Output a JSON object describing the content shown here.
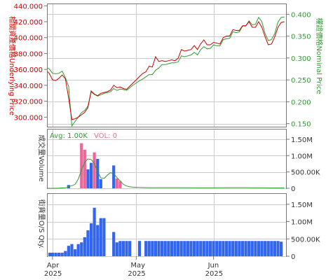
{
  "chart_data": [
    {
      "type": "line",
      "panel": "price",
      "left_axis_title": "相關資產價格Underlying Price",
      "right_axis_title": "權證價格Nominal Price",
      "left_ticks": [
        "440.000",
        "420.000",
        "400.000",
        "380.000",
        "360.000",
        "340.000",
        "320.000",
        "300.000"
      ],
      "left_tick_values": [
        440,
        420,
        400,
        380,
        360,
        340,
        320,
        300
      ],
      "right_ticks": [
        "0.400",
        "0.350",
        "0.300",
        "0.250",
        "0.200",
        "0.150"
      ],
      "right_tick_values": [
        0.4,
        0.35,
        0.3,
        0.25,
        0.2,
        0.15
      ],
      "left_ylim": [
        288,
        442
      ],
      "right_ylim": [
        0.143,
        0.423
      ],
      "x_ticks": [
        {
          "month": "Apr",
          "year": "2025",
          "x": 0
        },
        {
          "month": "May",
          "year": "2025",
          "x": 26
        },
        {
          "month": "Jun",
          "year": "2025",
          "x": 50
        }
      ],
      "xlim": [
        -1.5,
        72.5
      ],
      "series": [
        {
          "axis": "left",
          "color": "#cc0000",
          "x": [
            -2,
            -1,
            0,
            1,
            2,
            3,
            4,
            5,
            6,
            7,
            8,
            9,
            10,
            11,
            12,
            13,
            14,
            15,
            16,
            17,
            18,
            19,
            20,
            21,
            22,
            23,
            24,
            25,
            26,
            27,
            28,
            29,
            30,
            31,
            32,
            33,
            34,
            35,
            36,
            37,
            38,
            39,
            40,
            41,
            42,
            43,
            44,
            45,
            46,
            47,
            48,
            49,
            50,
            51,
            52,
            53,
            54,
            55,
            56,
            57,
            58,
            59,
            60,
            61,
            62,
            63,
            64,
            65,
            66,
            67,
            68,
            69,
            70,
            71,
            72
          ],
          "values": [
            357,
            355,
            347,
            346,
            349,
            353,
            348,
            324,
            297,
            298,
            300,
            303,
            306,
            312,
            333,
            329,
            327,
            330,
            331,
            332,
            334,
            340,
            337,
            338,
            336,
            335,
            339,
            343,
            347,
            351,
            355,
            357,
            364,
            363,
            376,
            370,
            371,
            370,
            371,
            372,
            371,
            374,
            385,
            383,
            384,
            385,
            390,
            385,
            392,
            397,
            391,
            391,
            394,
            393,
            392,
            400,
            402,
            402,
            410,
            409,
            409,
            415,
            415,
            420,
            413,
            413,
            420,
            413,
            401,
            391,
            392,
            401,
            413,
            419,
            420
          ]
        },
        {
          "axis": "right",
          "color": "#339933",
          "x": [
            -2,
            -1,
            0,
            1,
            2,
            3,
            4,
            5,
            6,
            7,
            8,
            9,
            10,
            11,
            12,
            13,
            14,
            15,
            16,
            17,
            18,
            19,
            20,
            21,
            22,
            23,
            24,
            25,
            26,
            27,
            28,
            29,
            30,
            31,
            32,
            33,
            34,
            35,
            36,
            37,
            38,
            39,
            40,
            41,
            42,
            43,
            44,
            45,
            46,
            47,
            48,
            49,
            50,
            51,
            52,
            53,
            54,
            55,
            56,
            57,
            58,
            59,
            60,
            61,
            62,
            63,
            64,
            65,
            66,
            67,
            68,
            69,
            70,
            71,
            72
          ],
          "values": [
            0.277,
            0.275,
            0.265,
            0.264,
            0.265,
            0.27,
            0.255,
            0.235,
            0.145,
            0.155,
            0.165,
            0.175,
            0.18,
            0.19,
            0.222,
            0.217,
            0.213,
            0.216,
            0.219,
            0.221,
            0.223,
            0.23,
            0.226,
            0.229,
            0.228,
            0.226,
            0.232,
            0.238,
            0.243,
            0.248,
            0.252,
            0.257,
            0.262,
            0.262,
            0.272,
            0.277,
            0.285,
            0.285,
            0.287,
            0.289,
            0.289,
            0.291,
            0.305,
            0.303,
            0.305,
            0.307,
            0.313,
            0.307,
            0.319,
            0.326,
            0.321,
            0.322,
            0.33,
            0.328,
            0.328,
            0.342,
            0.344,
            0.345,
            0.36,
            0.358,
            0.36,
            0.373,
            0.373,
            0.385,
            0.376,
            0.377,
            0.393,
            0.383,
            0.356,
            0.34,
            0.342,
            0.356,
            0.382,
            0.393,
            0.394
          ]
        }
      ]
    },
    {
      "type": "bar",
      "panel": "volume",
      "left_axis_title": "成交量Volume",
      "legend": {
        "avg_label": "Avg: 1.00K",
        "vol_label": "VOL: 0"
      },
      "right_ticks": [
        "1.50M",
        "1.00M",
        "500.00K",
        "0"
      ],
      "right_tick_values": [
        1500000,
        1000000,
        500000,
        0
      ],
      "ylim": [
        0,
        1800000
      ],
      "bars": [
        {
          "x": 5,
          "value": 100000,
          "color": "#3366ee"
        },
        {
          "x": 9,
          "value": 1380000,
          "color": "#ee6699"
        },
        {
          "x": 10,
          "value": 1180000,
          "color": "#ee6699"
        },
        {
          "x": 11,
          "value": 580000,
          "color": "#3366ee"
        },
        {
          "x": 12,
          "value": 780000,
          "color": "#3366ee"
        },
        {
          "x": 13,
          "value": 1100000,
          "color": "#ee6699"
        },
        {
          "x": 14,
          "value": 900000,
          "color": "#3366ee"
        },
        {
          "x": 15,
          "value": 280000,
          "color": "#3366ee"
        },
        {
          "x": 19,
          "value": 700000,
          "color": "#3366ee"
        },
        {
          "x": 20,
          "value": 300000,
          "color": "#ee6699"
        },
        {
          "x": 21,
          "value": 220000,
          "color": "#ee6699"
        }
      ],
      "avg_line": {
        "color": "#339933",
        "x": [
          -2,
          0,
          2,
          4,
          5,
          6,
          7,
          8,
          9,
          10,
          11,
          12,
          13,
          14,
          15,
          16,
          17,
          18,
          19,
          20,
          21,
          22,
          23,
          24,
          25,
          26,
          27,
          30,
          35,
          40,
          45,
          50,
          55,
          60,
          62,
          65,
          70,
          72
        ],
        "values": [
          0,
          0,
          5000,
          15000,
          50000,
          80000,
          120000,
          280000,
          560000,
          800000,
          900000,
          880000,
          760000,
          520000,
          320000,
          300000,
          400000,
          480000,
          450000,
          330000,
          230000,
          120000,
          70000,
          45000,
          35000,
          30000,
          25000,
          20000,
          20000,
          20000,
          15000,
          15000,
          20000,
          20000,
          15000,
          15000,
          10000,
          10000
        ]
      }
    },
    {
      "type": "bar",
      "panel": "os_qty",
      "left_axis_title": "街貨量O/S Qty.",
      "right_ticks": [
        "1.50M",
        "1.00M",
        "500.00K",
        "0"
      ],
      "right_tick_values": [
        1500000,
        1000000,
        500000,
        0
      ],
      "ylim": [
        0,
        1800000
      ],
      "color": "#3366ee",
      "x": [
        -2,
        -1,
        0,
        1,
        2,
        3,
        4,
        5,
        6,
        7,
        8,
        9,
        10,
        11,
        12,
        13,
        14,
        15,
        16,
        17,
        18,
        19,
        20,
        21,
        22,
        23,
        24,
        25,
        26,
        27,
        28,
        29,
        30,
        31,
        32,
        33,
        34,
        35,
        36,
        37,
        38,
        39,
        40,
        41,
        42,
        43,
        44,
        45,
        46,
        47,
        48,
        49,
        50,
        51,
        52,
        53,
        54,
        55,
        56,
        57,
        58,
        59,
        60,
        61,
        62,
        63,
        64,
        65,
        66,
        67,
        68,
        69,
        70,
        71
      ],
      "values": [
        100000,
        100000,
        100000,
        100000,
        100000,
        100000,
        150000,
        300000,
        350000,
        200000,
        350000,
        400000,
        550000,
        750000,
        950000,
        1400000,
        900000,
        1100000,
        1100000,
        0,
        0,
        700000,
        400000,
        440000,
        440000,
        440000,
        440000,
        0,
        0,
        440000,
        0,
        440000,
        440000,
        440000,
        440000,
        440000,
        440000,
        440000,
        440000,
        440000,
        440000,
        440000,
        440000,
        440000,
        440000,
        440000,
        440000,
        440000,
        440000,
        440000,
        440000,
        440000,
        440000,
        440000,
        440000,
        440000,
        440000,
        440000,
        440000,
        440000,
        440000,
        440000,
        440000,
        440000,
        440000,
        440000,
        440000,
        440000,
        440000,
        440000,
        440000,
        440000,
        440000,
        420000
      ]
    }
  ]
}
